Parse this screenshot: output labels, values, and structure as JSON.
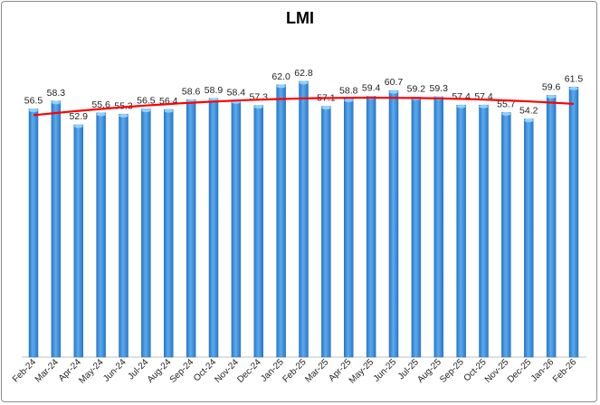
{
  "chart_data": {
    "type": "bar",
    "title": "LMI",
    "xlabel": "",
    "ylabel": "",
    "ylim": [
      0,
      70
    ],
    "grid": false,
    "legend": "none",
    "bar_color": "#3a8fdc",
    "trendline": {
      "type": "polynomial",
      "order": 2,
      "color": "#ff0000"
    },
    "categories": [
      "Feb-24",
      "Mar-24",
      "Apr-24",
      "May-24",
      "Jun-24",
      "Jul-24",
      "Aug-24",
      "Sep-24",
      "Oct-24",
      "Nov-24",
      "Dec-24",
      "Jan-25",
      "Feb-25",
      "Mar-25",
      "Apr-25",
      "May-25",
      "Jun-25",
      "Jul-25",
      "Aug-25",
      "Sep-25",
      "Oct-25",
      "Nov-25",
      "Dec-25",
      "Jan-26",
      "Feb-26"
    ],
    "values": [
      56.5,
      58.3,
      52.9,
      55.6,
      55.3,
      56.5,
      56.4,
      58.6,
      58.9,
      58.4,
      57.3,
      62.0,
      62.8,
      57.1,
      58.8,
      59.4,
      60.7,
      59.2,
      59.3,
      57.4,
      57.4,
      55.7,
      54.2,
      59.6,
      61.5
    ],
    "value_labels": [
      "56.5",
      "58.3",
      "52.9",
      "55.6",
      "55.3",
      "56.5",
      "56.4",
      "58.6",
      "58.9",
      "58.4",
      "57.3",
      "62.0",
      "62.8",
      "57.1",
      "58.8",
      "59.4",
      "60.7",
      "59.2",
      "59.3",
      "57.4",
      "57.4",
      "55.7",
      "54.2",
      "59.6",
      "61.5"
    ]
  }
}
